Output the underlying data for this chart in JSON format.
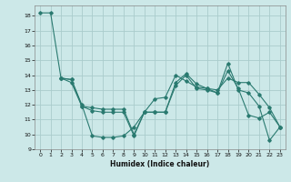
{
  "xlabel": "Humidex (Indice chaleur)",
  "bg_color": "#cce8e8",
  "grid_color": "#aacccc",
  "line_color": "#2a7a70",
  "xlim": [
    -0.5,
    23.5
  ],
  "ylim": [
    9,
    18.7
  ],
  "yticks": [
    9,
    10,
    11,
    12,
    13,
    14,
    15,
    16,
    17,
    18
  ],
  "xticks": [
    0,
    1,
    2,
    3,
    4,
    5,
    6,
    7,
    8,
    9,
    10,
    11,
    12,
    13,
    14,
    15,
    16,
    17,
    18,
    19,
    20,
    21,
    22,
    23
  ],
  "line1_x": [
    0,
    1,
    2,
    3,
    4,
    5,
    6,
    7,
    8,
    9,
    10,
    11,
    12,
    13,
    14,
    15,
    16,
    17,
    18,
    19,
    20,
    21,
    22,
    23
  ],
  "line1_y": [
    18.2,
    18.2,
    13.8,
    13.7,
    12.0,
    9.9,
    9.8,
    9.8,
    9.9,
    10.5,
    11.5,
    12.4,
    12.5,
    14.0,
    13.6,
    13.2,
    13.1,
    12.8,
    14.8,
    13.0,
    12.8,
    11.9,
    9.6,
    10.5
  ],
  "line2_x": [
    2,
    3,
    4,
    5,
    6,
    7,
    8,
    9,
    10,
    11,
    12,
    13,
    14,
    15,
    16,
    17,
    18,
    19,
    20,
    21,
    22,
    23
  ],
  "line2_y": [
    13.8,
    13.7,
    11.9,
    11.8,
    11.7,
    11.7,
    11.7,
    10.0,
    11.5,
    11.5,
    11.5,
    13.5,
    14.1,
    13.4,
    13.1,
    13.0,
    13.8,
    13.5,
    13.5,
    12.7,
    11.8,
    10.5
  ],
  "line3_x": [
    2,
    3,
    4,
    5,
    6,
    7,
    8,
    9,
    10,
    11,
    12,
    13,
    14,
    15,
    16,
    17,
    18,
    19,
    20,
    21,
    22,
    23
  ],
  "line3_y": [
    13.8,
    13.5,
    11.9,
    11.6,
    11.5,
    11.5,
    11.5,
    9.9,
    11.5,
    11.5,
    11.5,
    13.3,
    14.0,
    13.1,
    13.0,
    12.8,
    14.3,
    13.1,
    11.3,
    11.1,
    11.5,
    10.5
  ]
}
